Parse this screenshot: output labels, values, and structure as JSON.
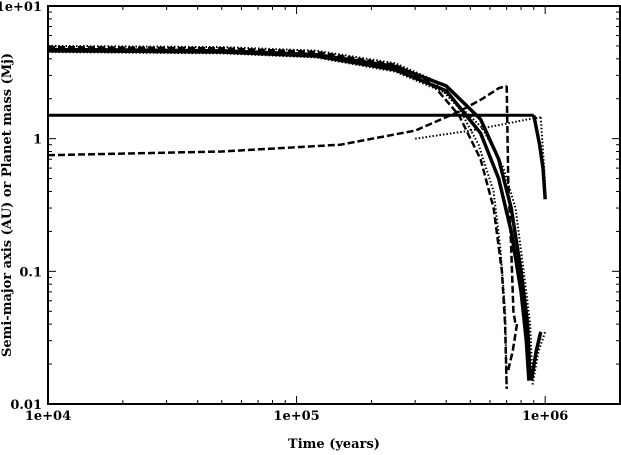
{
  "chart_data": {
    "type": "line",
    "xlabel": "Time (years)",
    "ylabel": "Semi-major axis (AU) or Planet mass (Mj)",
    "xscale": "log",
    "yscale": "log",
    "xlim": [
      10000,
      2000000
    ],
    "ylim": [
      0.01,
      10
    ],
    "x_ticks": [
      {
        "value": 10000,
        "label": "1e+04"
      },
      {
        "value": 100000,
        "label": "1e+05"
      },
      {
        "value": 1000000,
        "label": "1e+06"
      }
    ],
    "y_ticks": [
      {
        "value": 10,
        "label": "1e+01"
      },
      {
        "value": 1,
        "label": "1"
      },
      {
        "value": 0.1,
        "label": "0.1"
      },
      {
        "value": 0.01,
        "label": "0.01"
      }
    ],
    "grid": false,
    "legend": "none",
    "series": [
      {
        "style": "solid",
        "width": 3.5,
        "points": [
          [
            10000,
            4.6
          ],
          [
            50000,
            4.5
          ],
          [
            120000,
            4.2
          ],
          [
            250000,
            3.3
          ],
          [
            400000,
            2.3
          ],
          [
            550000,
            1.1
          ],
          [
            650000,
            0.5
          ],
          [
            730000,
            0.2
          ],
          [
            800000,
            0.07
          ],
          [
            840000,
            0.03
          ],
          [
            860000,
            0.015
          ]
        ]
      },
      {
        "style": "solid",
        "width": 3.5,
        "points": [
          [
            10000,
            4.7
          ],
          [
            50000,
            4.6
          ],
          [
            120000,
            4.3
          ],
          [
            250000,
            3.5
          ],
          [
            400000,
            2.5
          ],
          [
            550000,
            1.4
          ],
          [
            650000,
            0.7
          ],
          [
            730000,
            0.3
          ],
          [
            800000,
            0.1
          ],
          [
            850000,
            0.04
          ],
          [
            870000,
            0.015
          ]
        ]
      },
      {
        "style": "solid",
        "width": 3,
        "points": [
          [
            10000,
            1.5
          ],
          [
            900000,
            1.5
          ]
        ]
      },
      {
        "style": "solid",
        "width": 3.5,
        "points": [
          [
            880000,
            0.015
          ],
          [
            920000,
            0.025
          ],
          [
            960000,
            0.035
          ]
        ]
      },
      {
        "style": "solid",
        "width": 3.5,
        "points": [
          [
            900000,
            1.5
          ],
          [
            950000,
            0.9
          ],
          [
            980000,
            0.6
          ],
          [
            1000000,
            0.35
          ]
        ]
      },
      {
        "style": "dashed",
        "width": 2.5,
        "points": [
          [
            10000,
            4.9
          ],
          [
            50000,
            4.8
          ],
          [
            120000,
            4.5
          ],
          [
            250000,
            3.6
          ],
          [
            350000,
            2.6
          ],
          [
            450000,
            1.5
          ],
          [
            550000,
            0.7
          ],
          [
            620000,
            0.3
          ],
          [
            670000,
            0.1
          ],
          [
            690000,
            0.04
          ],
          [
            700000,
            0.013
          ]
        ]
      },
      {
        "style": "dashed",
        "width": 2.5,
        "points": [
          [
            10000,
            0.75
          ],
          [
            50000,
            0.8
          ],
          [
            150000,
            0.9
          ],
          [
            300000,
            1.15
          ],
          [
            450000,
            1.6
          ],
          [
            560000,
            2.0
          ],
          [
            650000,
            2.4
          ],
          [
            700000,
            2.5
          ]
        ]
      },
      {
        "style": "dashed",
        "width": 2.5,
        "points": [
          [
            700000,
            2.5
          ],
          [
            710000,
            0.5
          ],
          [
            730000,
            0.15
          ],
          [
            745000,
            0.05
          ],
          [
            760000,
            0.04
          ]
        ]
      },
      {
        "style": "dashed",
        "width": 2.5,
        "points": [
          [
            710000,
            0.018
          ],
          [
            740000,
            0.025
          ],
          [
            770000,
            0.04
          ]
        ]
      },
      {
        "style": "dotted",
        "width": 2,
        "points": [
          [
            10000,
            5.0
          ],
          [
            50000,
            4.9
          ],
          [
            120000,
            4.6
          ],
          [
            250000,
            3.7
          ],
          [
            350000,
            2.8
          ],
          [
            450000,
            1.7
          ],
          [
            540000,
            0.9
          ],
          [
            620000,
            0.4
          ],
          [
            660000,
            0.15
          ],
          [
            690000,
            0.05
          ],
          [
            700000,
            0.013
          ]
        ]
      },
      {
        "style": "dotted",
        "width": 2,
        "points": [
          [
            10000,
            4.5
          ],
          [
            50000,
            4.4
          ],
          [
            120000,
            4.1
          ],
          [
            250000,
            3.2
          ],
          [
            400000,
            2.2
          ],
          [
            560000,
            1.2
          ],
          [
            680000,
            0.6
          ],
          [
            760000,
            0.3
          ],
          [
            820000,
            0.1
          ],
          [
            870000,
            0.04
          ],
          [
            890000,
            0.015
          ]
        ]
      },
      {
        "style": "dotted",
        "width": 2,
        "points": [
          [
            300000,
            1.0
          ],
          [
            500000,
            1.15
          ],
          [
            700000,
            1.3
          ],
          [
            850000,
            1.4
          ],
          [
            960000,
            1.45
          ]
        ]
      },
      {
        "style": "dotted",
        "width": 2,
        "points": [
          [
            960000,
            1.45
          ],
          [
            980000,
            0.8
          ],
          [
            1000000,
            0.45
          ]
        ]
      },
      {
        "style": "dotted",
        "width": 2,
        "points": [
          [
            890000,
            0.014
          ],
          [
            940000,
            0.025
          ],
          [
            1000000,
            0.035
          ]
        ]
      }
    ]
  }
}
